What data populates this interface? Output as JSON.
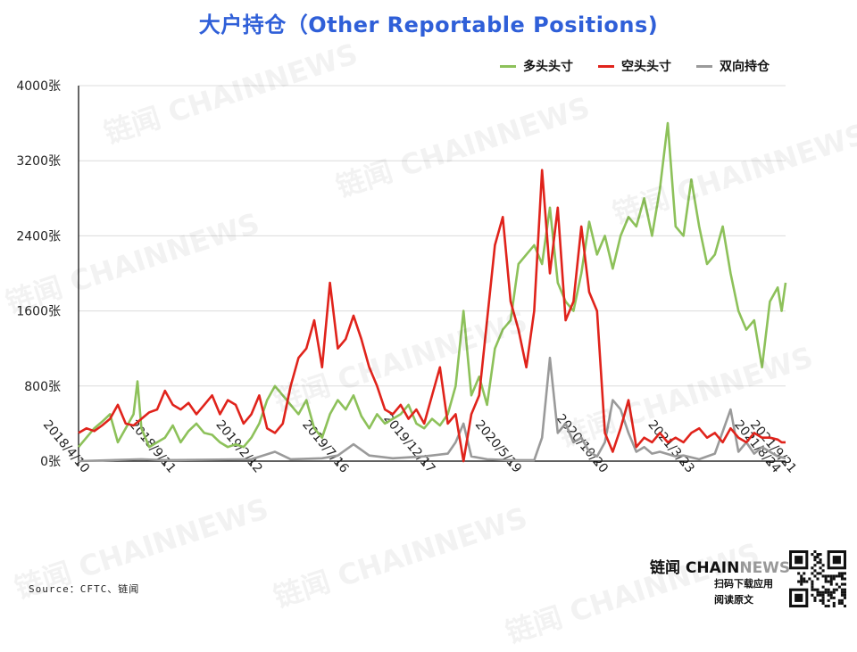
{
  "header": {
    "title": "大户持仓（Other Reportable Positions)"
  },
  "legend": {
    "items": [
      {
        "label": "多头头寸",
        "color": "#8dc15a"
      },
      {
        "label": "空头头寸",
        "color": "#e0231b"
      },
      {
        "label": "双向持仓",
        "color": "#9a9a9a"
      }
    ]
  },
  "watermark": {
    "text": "链闻 CHAINNEWS"
  },
  "footer": {
    "source": "Source：CFTC、链闻",
    "brand_main": "链闻 CHAIN",
    "brand_accent": "NEWS",
    "slogan_1": "扫码下载应用",
    "slogan_2": "阅读原文",
    "qr_icon": "qr-code-icon"
  },
  "chart_data": {
    "type": "line",
    "title": "大户持仓（Other Reportable Positions)",
    "ylim": [
      0,
      4000
    ],
    "yticks": [
      0,
      800,
      1600,
      2400,
      3200,
      4000
    ],
    "ytick_labels": [
      "0张",
      "800张",
      "1600张",
      "2400张",
      "3200张",
      "4000张"
    ],
    "xlim": [
      "2018-04-10",
      "2021-09-21"
    ],
    "xticks": [
      "2018-04-10",
      "2018-09-11",
      "2019-02-12",
      "2019-07-16",
      "2019-12-17",
      "2020-05-19",
      "2020-10-20",
      "2021-03-23",
      "2021-08-24",
      "2021-09-21"
    ],
    "xtick_labels": [
      "2018/4/10",
      "2018/9/11",
      "2019/2/12",
      "2019/7/16",
      "2019/12/17",
      "2020/5/19",
      "2020/10/20",
      "2021/3/23",
      "2021/8/24",
      "2021/9/21"
    ],
    "grid": "horizontal",
    "legend_position": "top-right",
    "series": [
      {
        "name": "多头头寸",
        "color": "#8dc15a",
        "points": [
          [
            "2018-04-10",
            150
          ],
          [
            "2018-04-24",
            250
          ],
          [
            "2018-05-08",
            350
          ],
          [
            "2018-05-22",
            420
          ],
          [
            "2018-06-05",
            500
          ],
          [
            "2018-06-19",
            200
          ],
          [
            "2018-07-03",
            350
          ],
          [
            "2018-07-17",
            500
          ],
          [
            "2018-07-24",
            850
          ],
          [
            "2018-07-31",
            350
          ],
          [
            "2018-08-14",
            150
          ],
          [
            "2018-08-28",
            200
          ],
          [
            "2018-09-11",
            250
          ],
          [
            "2018-09-25",
            380
          ],
          [
            "2018-10-09",
            200
          ],
          [
            "2018-10-23",
            320
          ],
          [
            "2018-11-06",
            400
          ],
          [
            "2018-11-20",
            300
          ],
          [
            "2018-12-04",
            280
          ],
          [
            "2018-12-18",
            200
          ],
          [
            "2019-01-01",
            150
          ],
          [
            "2019-01-15",
            180
          ],
          [
            "2019-01-29",
            150
          ],
          [
            "2019-02-12",
            250
          ],
          [
            "2019-02-26",
            400
          ],
          [
            "2019-03-12",
            650
          ],
          [
            "2019-03-26",
            800
          ],
          [
            "2019-04-09",
            700
          ],
          [
            "2019-04-23",
            600
          ],
          [
            "2019-05-07",
            500
          ],
          [
            "2019-05-21",
            650
          ],
          [
            "2019-06-04",
            350
          ],
          [
            "2019-06-18",
            250
          ],
          [
            "2019-07-02",
            500
          ],
          [
            "2019-07-16",
            650
          ],
          [
            "2019-07-30",
            550
          ],
          [
            "2019-08-13",
            700
          ],
          [
            "2019-08-27",
            480
          ],
          [
            "2019-09-10",
            350
          ],
          [
            "2019-09-24",
            500
          ],
          [
            "2019-10-08",
            400
          ],
          [
            "2019-10-22",
            450
          ],
          [
            "2019-11-05",
            500
          ],
          [
            "2019-11-19",
            600
          ],
          [
            "2019-12-03",
            400
          ],
          [
            "2019-12-17",
            350
          ],
          [
            "2019-12-31",
            450
          ],
          [
            "2020-01-14",
            380
          ],
          [
            "2020-01-28",
            500
          ],
          [
            "2020-02-11",
            800
          ],
          [
            "2020-02-25",
            1600
          ],
          [
            "2020-03-10",
            700
          ],
          [
            "2020-03-24",
            900
          ],
          [
            "2020-04-07",
            600
          ],
          [
            "2020-04-21",
            1200
          ],
          [
            "2020-05-05",
            1400
          ],
          [
            "2020-05-19",
            1500
          ],
          [
            "2020-06-02",
            2100
          ],
          [
            "2020-06-16",
            2200
          ],
          [
            "2020-06-30",
            2300
          ],
          [
            "2020-07-14",
            2100
          ],
          [
            "2020-07-28",
            2700
          ],
          [
            "2020-08-11",
            1900
          ],
          [
            "2020-08-25",
            1700
          ],
          [
            "2020-09-08",
            1600
          ],
          [
            "2020-09-22",
            2000
          ],
          [
            "2020-10-06",
            2550
          ],
          [
            "2020-10-20",
            2200
          ],
          [
            "2020-11-03",
            2400
          ],
          [
            "2020-11-17",
            2050
          ],
          [
            "2020-12-01",
            2400
          ],
          [
            "2020-12-15",
            2600
          ],
          [
            "2020-12-29",
            2500
          ],
          [
            "2021-01-12",
            2800
          ],
          [
            "2021-01-26",
            2400
          ],
          [
            "2021-02-09",
            2900
          ],
          [
            "2021-02-23",
            3600
          ],
          [
            "2021-03-09",
            2500
          ],
          [
            "2021-03-23",
            2400
          ],
          [
            "2021-04-06",
            3000
          ],
          [
            "2021-04-20",
            2500
          ],
          [
            "2021-05-04",
            2100
          ],
          [
            "2021-05-18",
            2200
          ],
          [
            "2021-06-01",
            2500
          ],
          [
            "2021-06-15",
            2000
          ],
          [
            "2021-06-29",
            1600
          ],
          [
            "2021-07-13",
            1400
          ],
          [
            "2021-07-27",
            1500
          ],
          [
            "2021-08-10",
            1000
          ],
          [
            "2021-08-24",
            1700
          ],
          [
            "2021-09-07",
            1850
          ],
          [
            "2021-09-14",
            1600
          ],
          [
            "2021-09-21",
            1900
          ]
        ]
      },
      {
        "name": "空头头寸",
        "color": "#e0231b",
        "points": [
          [
            "2018-04-10",
            300
          ],
          [
            "2018-04-24",
            350
          ],
          [
            "2018-05-08",
            320
          ],
          [
            "2018-05-22",
            380
          ],
          [
            "2018-06-05",
            450
          ],
          [
            "2018-06-19",
            600
          ],
          [
            "2018-07-03",
            400
          ],
          [
            "2018-07-17",
            380
          ],
          [
            "2018-07-31",
            450
          ],
          [
            "2018-08-14",
            520
          ],
          [
            "2018-08-28",
            550
          ],
          [
            "2018-09-11",
            750
          ],
          [
            "2018-09-25",
            600
          ],
          [
            "2018-10-09",
            550
          ],
          [
            "2018-10-23",
            620
          ],
          [
            "2018-11-06",
            500
          ],
          [
            "2018-11-20",
            600
          ],
          [
            "2018-12-04",
            700
          ],
          [
            "2018-12-18",
            500
          ],
          [
            "2019-01-01",
            650
          ],
          [
            "2019-01-15",
            600
          ],
          [
            "2019-01-29",
            400
          ],
          [
            "2019-02-12",
            500
          ],
          [
            "2019-02-26",
            700
          ],
          [
            "2019-03-12",
            350
          ],
          [
            "2019-03-26",
            300
          ],
          [
            "2019-04-09",
            400
          ],
          [
            "2019-04-23",
            800
          ],
          [
            "2019-05-07",
            1100
          ],
          [
            "2019-05-21",
            1200
          ],
          [
            "2019-06-04",
            1500
          ],
          [
            "2019-06-18",
            1000
          ],
          [
            "2019-07-02",
            1900
          ],
          [
            "2019-07-16",
            1200
          ],
          [
            "2019-07-30",
            1300
          ],
          [
            "2019-08-13",
            1550
          ],
          [
            "2019-08-27",
            1300
          ],
          [
            "2019-09-10",
            1000
          ],
          [
            "2019-09-24",
            800
          ],
          [
            "2019-10-08",
            550
          ],
          [
            "2019-10-22",
            500
          ],
          [
            "2019-11-05",
            600
          ],
          [
            "2019-11-19",
            450
          ],
          [
            "2019-12-03",
            550
          ],
          [
            "2019-12-17",
            400
          ],
          [
            "2019-12-31",
            700
          ],
          [
            "2020-01-14",
            1000
          ],
          [
            "2020-01-28",
            400
          ],
          [
            "2020-02-11",
            500
          ],
          [
            "2020-02-25",
            0
          ],
          [
            "2020-03-10",
            500
          ],
          [
            "2020-03-24",
            700
          ],
          [
            "2020-04-07",
            1500
          ],
          [
            "2020-04-21",
            2300
          ],
          [
            "2020-05-05",
            2600
          ],
          [
            "2020-05-19",
            1700
          ],
          [
            "2020-06-02",
            1400
          ],
          [
            "2020-06-16",
            1000
          ],
          [
            "2020-06-30",
            1600
          ],
          [
            "2020-07-14",
            3100
          ],
          [
            "2020-07-28",
            2000
          ],
          [
            "2020-08-11",
            2700
          ],
          [
            "2020-08-25",
            1500
          ],
          [
            "2020-09-08",
            1700
          ],
          [
            "2020-09-22",
            2500
          ],
          [
            "2020-10-06",
            1800
          ],
          [
            "2020-10-20",
            1600
          ],
          [
            "2020-11-03",
            300
          ],
          [
            "2020-11-17",
            100
          ],
          [
            "2020-12-01",
            350
          ],
          [
            "2020-12-15",
            650
          ],
          [
            "2020-12-29",
            150
          ],
          [
            "2021-01-12",
            250
          ],
          [
            "2021-01-26",
            200
          ],
          [
            "2021-02-09",
            300
          ],
          [
            "2021-02-23",
            200
          ],
          [
            "2021-03-09",
            250
          ],
          [
            "2021-03-23",
            200
          ],
          [
            "2021-04-06",
            300
          ],
          [
            "2021-04-20",
            350
          ],
          [
            "2021-05-04",
            250
          ],
          [
            "2021-05-18",
            300
          ],
          [
            "2021-06-01",
            200
          ],
          [
            "2021-06-15",
            350
          ],
          [
            "2021-06-29",
            250
          ],
          [
            "2021-07-13",
            200
          ],
          [
            "2021-07-27",
            300
          ],
          [
            "2021-08-10",
            250
          ],
          [
            "2021-08-24",
            250
          ],
          [
            "2021-09-07",
            230
          ],
          [
            "2021-09-14",
            200
          ],
          [
            "2021-09-21",
            200
          ]
        ]
      },
      {
        "name": "双向持仓",
        "color": "#9a9a9a",
        "points": [
          [
            "2018-04-10",
            0
          ],
          [
            "2018-07-31",
            20
          ],
          [
            "2018-09-11",
            10
          ],
          [
            "2019-02-12",
            20
          ],
          [
            "2019-03-26",
            100
          ],
          [
            "2019-04-23",
            20
          ],
          [
            "2019-06-18",
            30
          ],
          [
            "2019-07-16",
            60
          ],
          [
            "2019-08-13",
            180
          ],
          [
            "2019-09-10",
            60
          ],
          [
            "2019-10-22",
            30
          ],
          [
            "2019-12-17",
            50
          ],
          [
            "2020-01-28",
            80
          ],
          [
            "2020-02-11",
            200
          ],
          [
            "2020-02-25",
            400
          ],
          [
            "2020-03-10",
            50
          ],
          [
            "2020-04-07",
            20
          ],
          [
            "2020-05-19",
            10
          ],
          [
            "2020-06-30",
            10
          ],
          [
            "2020-07-14",
            250
          ],
          [
            "2020-07-28",
            1100
          ],
          [
            "2020-08-11",
            300
          ],
          [
            "2020-08-25",
            400
          ],
          [
            "2020-09-08",
            200
          ],
          [
            "2020-09-22",
            250
          ],
          [
            "2020-10-06",
            100
          ],
          [
            "2020-10-20",
            50
          ],
          [
            "2020-11-03",
            200
          ],
          [
            "2020-11-17",
            650
          ],
          [
            "2020-12-01",
            550
          ],
          [
            "2020-12-15",
            300
          ],
          [
            "2020-12-29",
            100
          ],
          [
            "2021-01-12",
            150
          ],
          [
            "2021-01-26",
            80
          ],
          [
            "2021-02-09",
            100
          ],
          [
            "2021-03-09",
            50
          ],
          [
            "2021-03-23",
            60
          ],
          [
            "2021-04-20",
            20
          ],
          [
            "2021-05-18",
            80
          ],
          [
            "2021-06-15",
            550
          ],
          [
            "2021-06-29",
            100
          ],
          [
            "2021-07-13",
            200
          ],
          [
            "2021-07-27",
            80
          ],
          [
            "2021-08-10",
            150
          ],
          [
            "2021-08-24",
            100
          ],
          [
            "2021-09-07",
            50
          ],
          [
            "2021-09-21",
            30
          ]
        ]
      }
    ]
  }
}
